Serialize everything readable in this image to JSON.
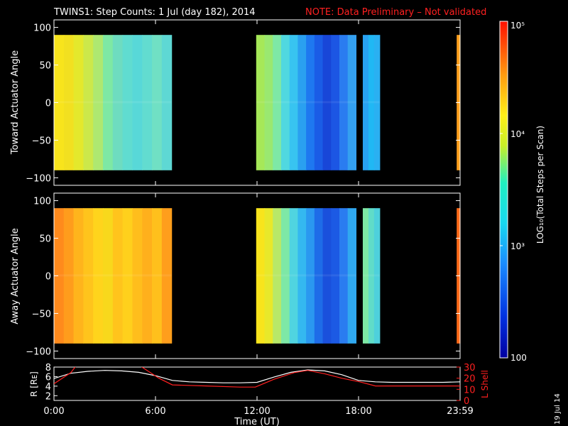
{
  "title": {
    "main": "TWINS1: Step Counts:  1 Jul (day 182), 2014",
    "note": "NOTE: Data Preliminary – Not validated"
  },
  "colors": {
    "accent": "#ff2020",
    "frame": "#ffffff",
    "background": "#000000"
  },
  "stamp": "19 Jul 14",
  "chart_data": [
    {
      "type": "heatmap",
      "ylabel": "Toward Actuator Angle",
      "ylim": [
        -110,
        110
      ],
      "yticks": [
        "100",
        "50",
        "0",
        "−50",
        "−100"
      ],
      "ytick_values": [
        100,
        50,
        0,
        -50,
        -100
      ],
      "xlim": [
        0,
        24
      ],
      "angle_range": [
        -90,
        90
      ],
      "segments": [
        {
          "t_start": 0.0,
          "t_end": 6.95,
          "colors": [
            "#f8e41c",
            "#f2e020",
            "#e4e82c",
            "#cce84a",
            "#aee870",
            "#7ee8a4",
            "#6edcc0",
            "#60dcd0",
            "#58d8d8",
            "#62dcd0",
            "#70e0c4",
            "#5ed8d4"
          ]
        },
        {
          "t_start": 11.95,
          "t_end": 17.85,
          "colors": [
            "#a6e858",
            "#9ae870",
            "#7ee8a6",
            "#50d8e0",
            "#38c4f0",
            "#2aa0f0",
            "#1e78f0",
            "#1a5ce6",
            "#1846d8",
            "#1c56e4",
            "#2a7cf0",
            "#34a0f0"
          ]
        },
        {
          "t_start": 18.25,
          "t_end": 19.25,
          "colors": [
            "#28a2f2",
            "#20b8f4",
            "#2ab0f2"
          ]
        },
        {
          "t_start": 23.8,
          "t_end": 24.0,
          "colors": [
            "#ffa01c"
          ]
        }
      ]
    },
    {
      "type": "heatmap",
      "ylabel": "Away Actuator Angle",
      "ylim": [
        -110,
        110
      ],
      "yticks": [
        "100",
        "50",
        "0",
        "−50",
        "−100"
      ],
      "ytick_values": [
        100,
        50,
        0,
        -50,
        -100
      ],
      "xlim": [
        0,
        24
      ],
      "angle_range": [
        -90,
        90
      ],
      "segments": [
        {
          "t_start": 0.0,
          "t_end": 6.95,
          "colors": [
            "#ff8a1c",
            "#ff9c1c",
            "#ffb41c",
            "#ffc41c",
            "#ffd41c",
            "#f8d81c",
            "#ffc41c",
            "#ffd01c",
            "#ffbe1c",
            "#ffb01c",
            "#ffc01c",
            "#ff9e1c"
          ]
        },
        {
          "t_start": 11.95,
          "t_end": 17.85,
          "colors": [
            "#f8e41c",
            "#e8e82a",
            "#b8e868",
            "#7ee8a6",
            "#50d4e0",
            "#34b8f0",
            "#2a98f0",
            "#1e6ce8",
            "#1a50dc",
            "#1c5ae4",
            "#2a7cf0",
            "#30a8f0"
          ]
        },
        {
          "t_start": 18.25,
          "t_end": 19.25,
          "colors": [
            "#7ee8a4",
            "#60dcc8",
            "#4ed0dc"
          ]
        },
        {
          "t_start": 23.8,
          "t_end": 24.0,
          "colors": [
            "#ff6a18"
          ]
        }
      ]
    },
    {
      "type": "line",
      "ylabel": "R [Rᴇ]",
      "ylabel2": "L Shell",
      "xlabel": "Time (UT)",
      "xticks": [
        "0:00",
        "6:00",
        "12:00",
        "18:00",
        "23:59"
      ],
      "xtick_values": [
        0,
        6,
        12,
        18,
        24
      ],
      "ylim": [
        1,
        8
      ],
      "yticks": [
        "8",
        "6",
        "4",
        "2"
      ],
      "ytick_values": [
        8,
        6,
        4,
        2
      ],
      "ylim2": [
        0,
        30
      ],
      "yticks2": [
        "30",
        "20",
        "10",
        "0"
      ],
      "ytick_values2": [
        30,
        20,
        10,
        0
      ],
      "series": [
        {
          "color": "#ffffff",
          "axis": "left",
          "x": [
            0,
            1,
            2,
            3,
            4,
            5,
            6,
            7,
            8,
            9,
            10,
            11,
            12,
            13,
            14,
            15,
            16,
            17,
            18,
            19,
            20,
            21,
            22,
            23,
            24
          ],
          "y": [
            5.6,
            6.7,
            7.1,
            7.3,
            7.2,
            6.9,
            6.2,
            5.2,
            4.9,
            4.8,
            4.7,
            4.7,
            4.8,
            5.9,
            6.9,
            7.4,
            7.2,
            6.4,
            5.2,
            4.9,
            4.8,
            4.8,
            4.8,
            4.8,
            4.9
          ]
        },
        {
          "color": "#ff2020",
          "axis": "right",
          "x": [
            0,
            1,
            1.35,
            5.0,
            5.5,
            6.2,
            7.0,
            9.0,
            11.0,
            11.9,
            13.0,
            14.2,
            15.0,
            16.0,
            17.0,
            18.0,
            19.0,
            20.0,
            22.0,
            24.0
          ],
          "y": [
            15,
            25,
            32,
            32,
            27,
            20,
            14,
            13,
            12,
            12,
            19,
            25,
            27,
            24,
            20,
            17,
            13,
            13,
            13,
            13
          ]
        }
      ]
    },
    {
      "type": "colorbar",
      "label": "LOG₁₀(Total Steps per Scan)",
      "ticks": [
        "10⁵",
        "10⁴",
        "10³",
        "100"
      ],
      "tick_values": [
        100000,
        10000,
        1000,
        100
      ],
      "range": [
        100,
        100000
      ]
    }
  ]
}
